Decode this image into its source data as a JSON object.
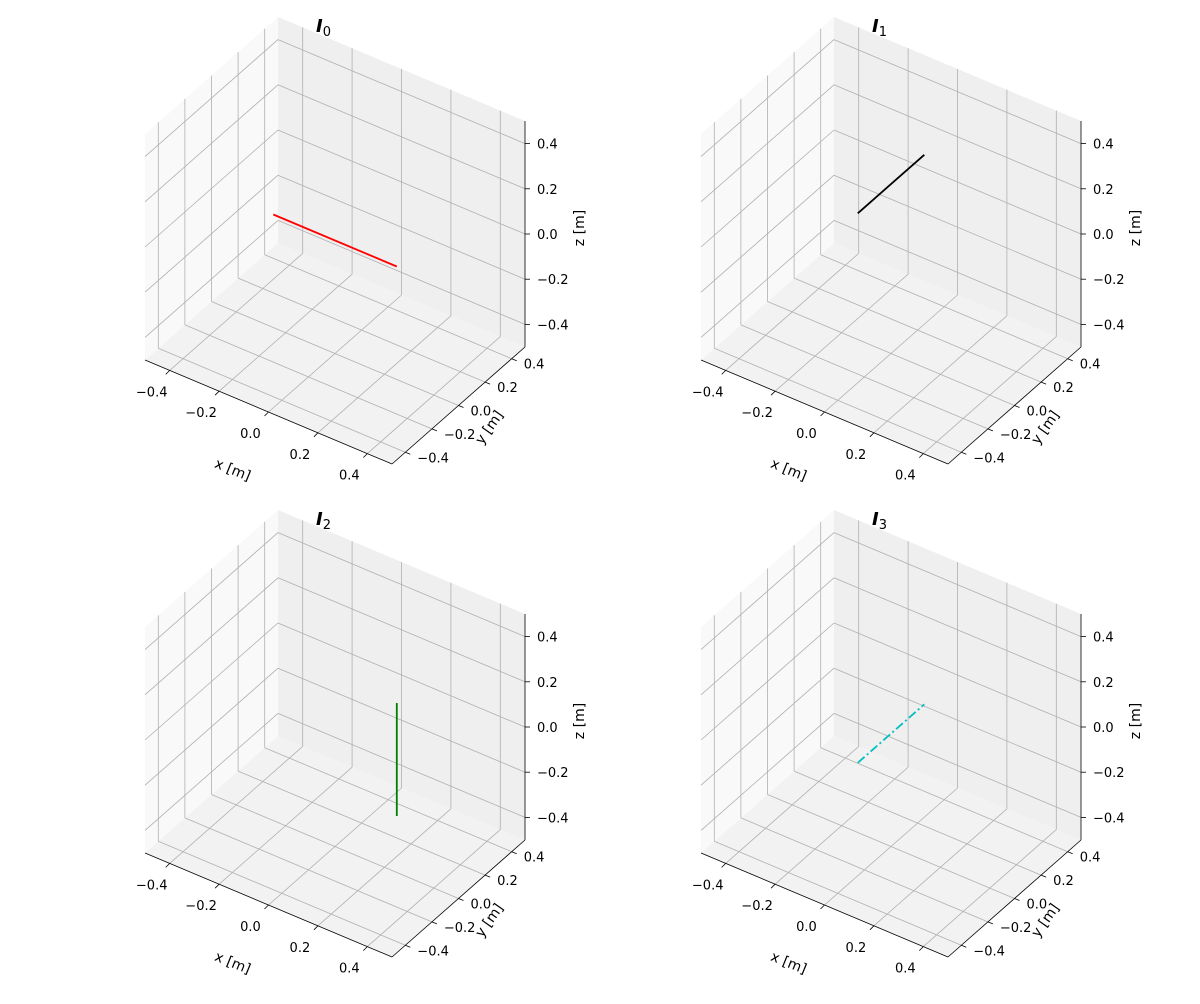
{
  "chart_data": [
    {
      "type": "line",
      "projection": "3d",
      "title": "I",
      "title_subscript": "0",
      "xlabel": "x [m]",
      "ylabel": "y [m]",
      "zlabel": "z [m]",
      "xlim": [
        -0.5,
        0.5
      ],
      "ylim": [
        -0.5,
        0.5
      ],
      "zlim": [
        -0.5,
        0.5
      ],
      "xticks": [
        -0.4,
        -0.2,
        0.0,
        0.2,
        0.4
      ],
      "yticks": [
        -0.4,
        -0.2,
        0.0,
        0.2,
        0.4
      ],
      "zticks": [
        -0.4,
        -0.2,
        0.0,
        0.2,
        0.4
      ],
      "grid": true,
      "series": [
        {
          "color": "#ff0000",
          "dash": "solid",
          "x": [
            -0.25,
            0.25
          ],
          "y": [
            0.0,
            0.0
          ],
          "z": [
            0.0,
            0.0
          ]
        }
      ]
    },
    {
      "type": "line",
      "projection": "3d",
      "title": "I",
      "title_subscript": "1",
      "xlabel": "x [m]",
      "ylabel": "y [m]",
      "zlabel": "z [m]",
      "xlim": [
        -0.5,
        0.5
      ],
      "ylim": [
        -0.5,
        0.5
      ],
      "zlim": [
        -0.5,
        0.5
      ],
      "xticks": [
        -0.4,
        -0.2,
        0.0,
        0.2,
        0.4
      ],
      "yticks": [
        -0.4,
        -0.2,
        0.0,
        0.2,
        0.4
      ],
      "zticks": [
        -0.4,
        -0.2,
        0.0,
        0.2,
        0.4
      ],
      "grid": true,
      "series": [
        {
          "color": "#000000",
          "dash": "solid",
          "x": [
            0.0,
            0.0
          ],
          "y": [
            -0.25,
            0.25
          ],
          "z": [
            0.25,
            0.25
          ]
        }
      ]
    },
    {
      "type": "line",
      "projection": "3d",
      "title": "I",
      "title_subscript": "2",
      "xlabel": "x [m]",
      "ylabel": "y [m]",
      "zlabel": "z [m]",
      "xlim": [
        -0.5,
        0.5
      ],
      "ylim": [
        -0.5,
        0.5
      ],
      "zlim": [
        -0.5,
        0.5
      ],
      "xticks": [
        -0.4,
        -0.2,
        0.0,
        0.2,
        0.4
      ],
      "yticks": [
        -0.4,
        -0.2,
        0.0,
        0.2,
        0.4
      ],
      "zticks": [
        -0.4,
        -0.2,
        0.0,
        0.2,
        0.4
      ],
      "grid": true,
      "series": [
        {
          "color": "#008000",
          "dash": "solid",
          "x": [
            0.25,
            0.25
          ],
          "y": [
            0.0,
            0.0
          ],
          "z": [
            -0.25,
            0.25
          ]
        }
      ]
    },
    {
      "type": "line",
      "projection": "3d",
      "title": "I",
      "title_subscript": "3",
      "xlabel": "x [m]",
      "ylabel": "y [m]",
      "zlabel": "z [m]",
      "xlim": [
        -0.5,
        0.5
      ],
      "ylim": [
        -0.5,
        0.5
      ],
      "zlim": [
        -0.5,
        0.5
      ],
      "xticks": [
        -0.4,
        -0.2,
        0.0,
        0.2,
        0.4
      ],
      "yticks": [
        -0.4,
        -0.2,
        0.0,
        0.2,
        0.4
      ],
      "zticks": [
        -0.4,
        -0.2,
        0.0,
        0.2,
        0.4
      ],
      "grid": true,
      "series": [
        {
          "color": "#00bfbf",
          "dash": "dashdot",
          "x": [
            0.0,
            0.0
          ],
          "y": [
            -0.25,
            0.25
          ],
          "z": [
            0.0,
            0.0
          ]
        }
      ]
    }
  ]
}
